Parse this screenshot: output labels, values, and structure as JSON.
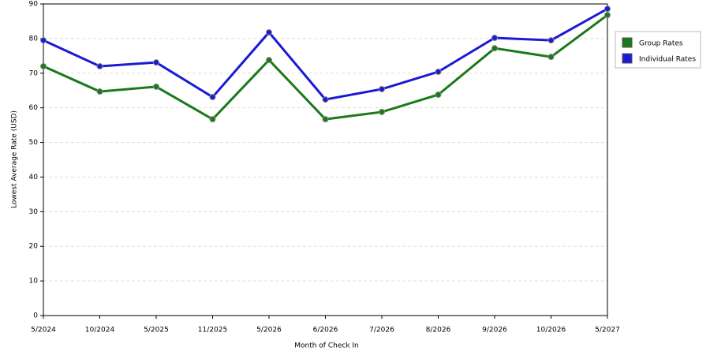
{
  "chart_data": {
    "type": "line",
    "x_label": "Month of Check In",
    "y_label": "Lowest Average Rate (USD)",
    "categories": [
      "5/2024",
      "10/2024",
      "5/2025",
      "11/2025",
      "5/2026",
      "6/2026",
      "7/2026",
      "8/2026",
      "9/2026",
      "10/2026",
      "5/2027"
    ],
    "series": [
      {
        "name": "Group Rates",
        "color": "#1a7a1a",
        "values": [
          72.0,
          64.7,
          66.1,
          56.7,
          73.8,
          56.7,
          58.8,
          63.8,
          77.2,
          74.7,
          86.8
        ]
      },
      {
        "name": "Individual Rates",
        "color": "#1a1ad6",
        "values": [
          79.5,
          72.0,
          73.1,
          63.1,
          81.8,
          62.4,
          65.4,
          70.4,
          80.2,
          79.5,
          88.6
        ]
      }
    ],
    "ylim": [
      0,
      90
    ],
    "yticks": [
      0,
      10,
      20,
      30,
      40,
      50,
      60,
      70,
      80,
      90
    ],
    "grid": true,
    "legend": "right"
  }
}
